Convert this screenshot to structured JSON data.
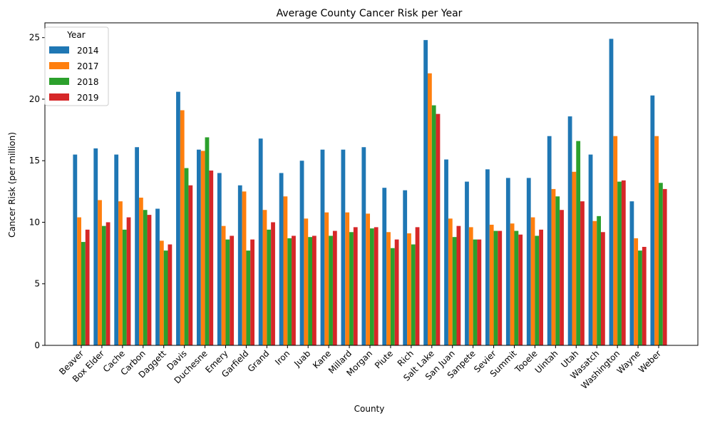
{
  "chart_data": {
    "type": "bar",
    "title": "Average County Cancer Risk per Year",
    "xlabel": "County",
    "ylabel": "Cancer Risk (per million)",
    "ylim": [
      0,
      26.2
    ],
    "yticks": [
      0,
      5,
      10,
      15,
      20,
      25
    ],
    "grid": false,
    "legend": {
      "title": "Year",
      "placement": "top-left"
    },
    "categories": [
      "Beaver",
      "Box Elder",
      "Cache",
      "Carbon",
      "Daggett",
      "Davis",
      "Duchesne",
      "Emery",
      "Garfield",
      "Grand",
      "Iron",
      "Juab",
      "Kane",
      "Millard",
      "Morgan",
      "Piute",
      "Rich",
      "Salt Lake",
      "San Juan",
      "Sanpete",
      "Sevier",
      "Summit",
      "Tooele",
      "Uintah",
      "Utah",
      "Wasatch",
      "Washington",
      "Wayne",
      "Weber"
    ],
    "series": [
      {
        "name": "2014",
        "color": "#1f77b4",
        "values": [
          15.5,
          16.0,
          15.5,
          16.1,
          11.1,
          20.6,
          15.9,
          14.0,
          13.0,
          16.8,
          14.0,
          15.0,
          15.9,
          15.9,
          16.1,
          12.8,
          12.6,
          24.8,
          15.1,
          13.3,
          14.3,
          13.6,
          13.6,
          17.0,
          18.6,
          15.5,
          24.9,
          11.7,
          20.3
        ]
      },
      {
        "name": "2017",
        "color": "#ff7f0e",
        "values": [
          10.4,
          11.8,
          11.7,
          12.0,
          8.5,
          19.1,
          15.8,
          9.7,
          12.5,
          11.0,
          12.1,
          10.3,
          10.8,
          10.8,
          10.7,
          9.2,
          9.1,
          22.1,
          10.3,
          9.6,
          9.8,
          9.9,
          10.4,
          12.7,
          14.1,
          10.1,
          17.0,
          8.7,
          17.0
        ]
      },
      {
        "name": "2018",
        "color": "#2ca02c",
        "values": [
          8.4,
          9.7,
          9.4,
          11.0,
          7.7,
          14.4,
          16.9,
          8.6,
          7.7,
          9.4,
          8.7,
          8.8,
          8.9,
          9.2,
          9.5,
          7.9,
          8.2,
          19.5,
          8.8,
          8.6,
          9.3,
          9.3,
          8.9,
          12.1,
          16.6,
          10.5,
          13.3,
          7.7,
          13.2
        ]
      },
      {
        "name": "2019",
        "color": "#d62728",
        "values": [
          9.4,
          10.0,
          10.4,
          10.6,
          8.2,
          13.0,
          14.2,
          8.9,
          8.6,
          10.0,
          8.9,
          8.9,
          9.3,
          9.6,
          9.6,
          8.6,
          9.6,
          18.8,
          9.7,
          8.6,
          9.3,
          9.0,
          9.4,
          11.0,
          11.7,
          9.2,
          13.4,
          8.0,
          12.7
        ]
      }
    ]
  }
}
